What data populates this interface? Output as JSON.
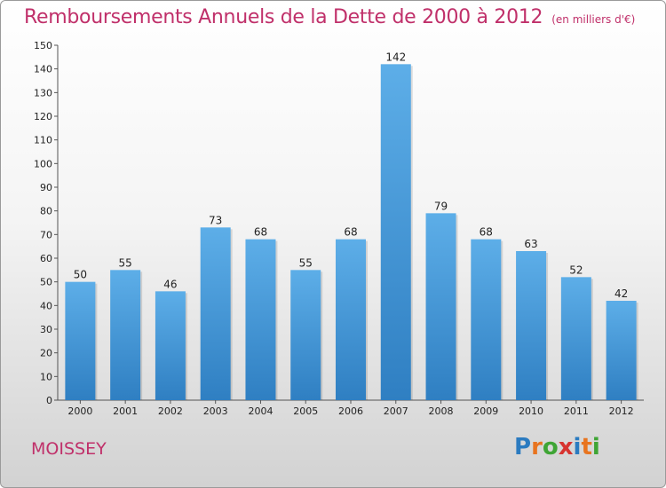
{
  "header": {
    "title": "Remboursements Annuels de la Dette de 2000 à 2012",
    "subtitle": "(en milliers d'€)"
  },
  "commune": "MOISSEY",
  "logo": {
    "letters": [
      "P",
      "r",
      "o",
      "x",
      "i",
      "t",
      "i"
    ],
    "colors": [
      "#2b7bc0",
      "#e8741f",
      "#3fa535",
      "#d7332f",
      "#2b7bc0",
      "#e8741f",
      "#3fa535"
    ]
  },
  "chart_data": {
    "type": "bar",
    "title": "Remboursements Annuels de la Dette de 2000 à 2012",
    "subtitle": "(en milliers d'€)",
    "categories": [
      "2000",
      "2001",
      "2002",
      "2003",
      "2004",
      "2005",
      "2006",
      "2007",
      "2008",
      "2009",
      "2010",
      "2011",
      "2012"
    ],
    "values": [
      50,
      55,
      46,
      73,
      68,
      55,
      68,
      142,
      79,
      68,
      63,
      52,
      42
    ],
    "ylim": [
      0,
      150
    ],
    "yticks": [
      0,
      10,
      20,
      30,
      40,
      50,
      60,
      70,
      80,
      90,
      100,
      110,
      120,
      130,
      140,
      150
    ],
    "grid": false,
    "bar_color_top": "#5daee8",
    "bar_color_bottom": "#2f7fc2"
  }
}
